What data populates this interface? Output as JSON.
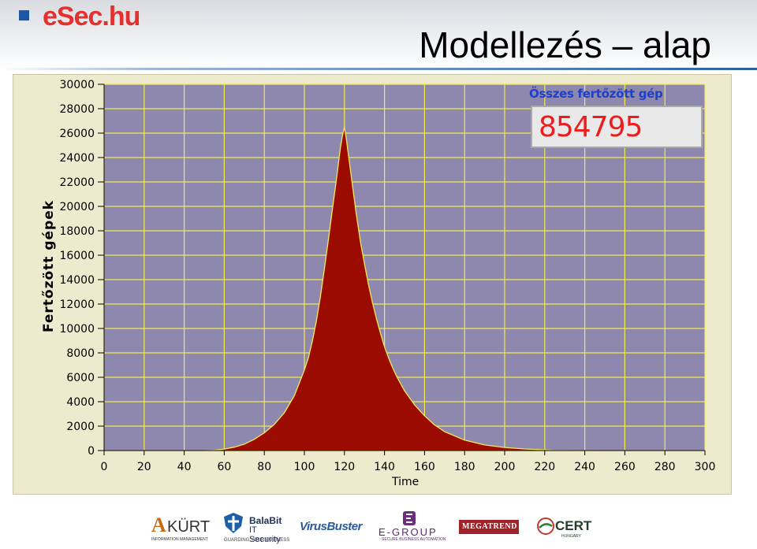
{
  "brand": {
    "logo_text": "eSec.hu",
    "logo_color": "#e3312f",
    "mark_color": "#1c57a6"
  },
  "slide": {
    "title": "Modellezés – alap"
  },
  "counter": {
    "label": "Összes fertőzött gép",
    "value": "854795",
    "value_color": "#ee1c1c"
  },
  "chart_data": {
    "type": "area",
    "title": "",
    "xlabel": "Time",
    "ylabel": "Fertőzött gépek",
    "xlim": [
      0,
      300
    ],
    "ylim": [
      0,
      30000
    ],
    "xticks": [
      0,
      20,
      40,
      60,
      80,
      100,
      120,
      140,
      160,
      180,
      200,
      220,
      240,
      260,
      280,
      300
    ],
    "yticks": [
      0,
      2000,
      4000,
      6000,
      8000,
      10000,
      12000,
      14000,
      16000,
      18000,
      20000,
      22000,
      24000,
      26000,
      28000,
      30000
    ],
    "grid": true,
    "colors": {
      "plot_bg": "#8e87ae",
      "grid": "#f2ea52",
      "fill": "#9c0b00",
      "outline": "#f2ea52"
    },
    "series": [
      {
        "x": [
          50,
          55,
          60,
          65,
          70,
          75,
          80,
          85,
          90,
          95,
          100,
          102,
          104,
          106,
          108,
          110,
          112,
          114,
          116,
          118,
          119,
          120,
          121,
          122,
          124,
          126,
          128,
          130,
          132,
          134,
          136,
          138,
          140,
          142,
          144,
          146,
          148,
          150,
          155,
          160,
          165,
          170,
          180,
          190,
          200,
          210,
          220,
          225,
          235,
          245
        ],
        "y": [
          0,
          30,
          120,
          280,
          520,
          920,
          1450,
          2150,
          3100,
          4500,
          6600,
          7600,
          9000,
          10600,
          12600,
          14900,
          17300,
          19800,
          22200,
          24800,
          25800,
          26500,
          25500,
          24200,
          21700,
          19300,
          17100,
          15300,
          13600,
          12100,
          10800,
          9600,
          8500,
          7600,
          6800,
          6100,
          5500,
          4900,
          3750,
          2850,
          2100,
          1550,
          850,
          460,
          250,
          130,
          60,
          20,
          5,
          0
        ]
      }
    ]
  },
  "sponsors": {
    "kurt": {
      "letter": "A",
      "word": "KÜRT",
      "sub": "INFORMATION MANAGEMENT"
    },
    "balabit": {
      "line1": "BalaBit",
      "line2": "IT Security",
      "sub": "GUARDING YOUR BUSINESS"
    },
    "virusbuster": {
      "name": "VirusBuster"
    },
    "egroup": {
      "name": "E-GROUP",
      "sub": "SECURE BUSINESS AUTOMATION"
    },
    "megatrend": {
      "name": "MEGATREND"
    },
    "cert": {
      "name": "CERT",
      "sub": "HUNGARY"
    }
  }
}
